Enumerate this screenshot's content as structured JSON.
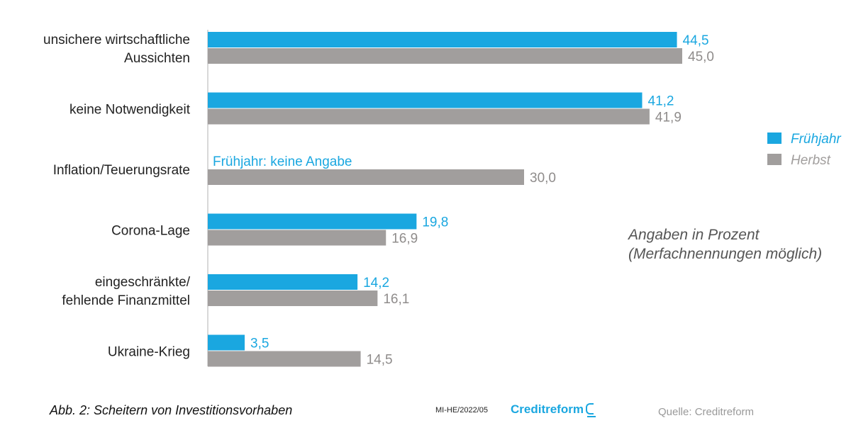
{
  "chart_data": {
    "type": "bar",
    "orientation": "horizontal",
    "categories": [
      [
        "unsichere wirtschaftliche",
        "Aussichten"
      ],
      [
        "keine Notwendigkeit"
      ],
      [
        "Inflation/Teuerungsrate"
      ],
      [
        "Corona-Lage"
      ],
      [
        "eingeschränkte/",
        "fehlende Finanzmittel"
      ],
      [
        "Ukraine-Krieg"
      ]
    ],
    "series": [
      {
        "name": "Frühjahr",
        "color": "#1aa7e0",
        "values": [
          44.5,
          41.2,
          null,
          19.8,
          14.2,
          3.5
        ],
        "labels": [
          "44,5",
          "41,2",
          null,
          "19,8",
          "14,2",
          "3,5"
        ]
      },
      {
        "name": "Herbst",
        "color": "#a19e9d",
        "values": [
          45.0,
          41.9,
          30.0,
          16.9,
          16.1,
          14.5
        ],
        "labels": [
          "45,0",
          "41,9",
          "30,0",
          "16,9",
          "16,1",
          "14,5"
        ]
      }
    ],
    "annotations": [
      {
        "category_index": 2,
        "text": "Frühjahr: keine Angabe"
      }
    ],
    "xlim": [
      0,
      45
    ],
    "legend_position": "right",
    "grid": false
  },
  "note": {
    "line1": "Angaben in Prozent",
    "line2": "(Merfachnennungen möglich)"
  },
  "footer": {
    "caption": "Abb. 2: Scheitern von Investitionsvorhaben",
    "code": "MI-HE/2022/05",
    "brand": "Creditreform",
    "source": "Quelle: Creditreform"
  }
}
